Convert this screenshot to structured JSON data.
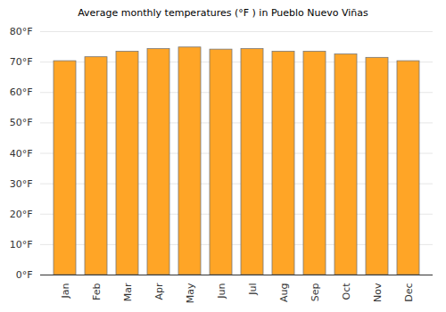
{
  "chart_data": {
    "type": "bar",
    "title": "Average monthly temperatures (°F ) in Pueblo Nuevo Viñas",
    "categories": [
      "Jan",
      "Feb",
      "Mar",
      "Apr",
      "May",
      "Jun",
      "Jul",
      "Aug",
      "Sep",
      "Oct",
      "Nov",
      "Dec"
    ],
    "values": [
      70.3,
      71.6,
      73.4,
      74.3,
      74.8,
      74.1,
      74.3,
      73.4,
      73.4,
      72.5,
      71.4,
      70.3
    ],
    "color": "#ffa526",
    "ylim": [
      0,
      80
    ],
    "yticks": [
      {
        "value": 0,
        "label": "0°F"
      },
      {
        "value": 10,
        "label": "10°F"
      },
      {
        "value": 20,
        "label": "20°F"
      },
      {
        "value": 30,
        "label": "30°F"
      },
      {
        "value": 40,
        "label": "40°F"
      },
      {
        "value": 50,
        "label": "50°F"
      },
      {
        "value": 60,
        "label": "60°F"
      },
      {
        "value": 70,
        "label": "70°F"
      },
      {
        "value": 80,
        "label": "80°F"
      }
    ],
    "grid": true
  }
}
